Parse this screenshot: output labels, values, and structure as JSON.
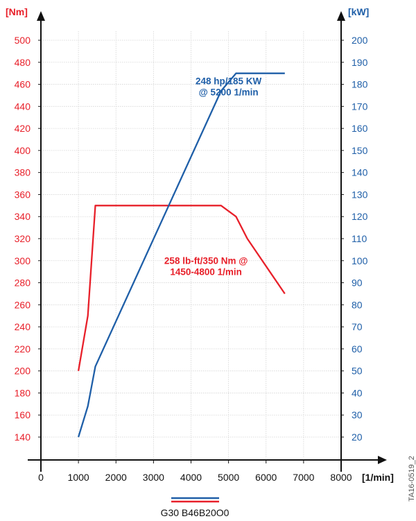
{
  "chart_data": {
    "type": "line",
    "x_axis": {
      "label": "[1/min]",
      "ticks": [
        0,
        1000,
        2000,
        3000,
        4000,
        5000,
        6000,
        7000,
        8000
      ],
      "range": [
        0,
        8000
      ]
    },
    "y_left": {
      "label": "[Nm]",
      "ticks": [
        140,
        160,
        180,
        200,
        220,
        240,
        260,
        280,
        300,
        320,
        340,
        360,
        380,
        400,
        420,
        440,
        460,
        480,
        500
      ],
      "range": [
        140,
        500
      ],
      "color": "#e8202a"
    },
    "y_right": {
      "label": "[kW]",
      "ticks": [
        20,
        30,
        40,
        50,
        60,
        70,
        80,
        90,
        100,
        110,
        120,
        130,
        140,
        150,
        160,
        170,
        180,
        190,
        200
      ],
      "range": [
        20,
        200
      ],
      "color": "#1f5fa8"
    },
    "grid": true,
    "series": [
      {
        "axis": "left",
        "color": "#e8202a",
        "x": [
          1000,
          1250,
          1450,
          4800,
          5200,
          5500,
          6500
        ],
        "y": [
          200,
          250,
          350,
          350,
          340,
          320,
          270
        ]
      },
      {
        "axis": "right",
        "color": "#1f5fa8",
        "x": [
          1000,
          1250,
          1450,
          4800,
          5200,
          6500
        ],
        "y": [
          20,
          34,
          52,
          177,
          185,
          185
        ]
      }
    ],
    "annotations": [
      {
        "lines": [
          "248 hp/185 KW",
          "@ 5200 1/min"
        ],
        "color": "#1f5fa8",
        "x": 5000,
        "y_left": 460
      },
      {
        "lines": [
          "258 lb-ft/350 Nm @",
          "1450-4800 1/min"
        ],
        "color": "#e8202a",
        "x": 4400,
        "y_left": 297
      }
    ],
    "legend": {
      "label": "G30 B46B20O0",
      "placement": "bottom-center",
      "colors": [
        "#1f5fa8",
        "#e8202a"
      ]
    },
    "figure_id": "TA16-0519_2"
  }
}
